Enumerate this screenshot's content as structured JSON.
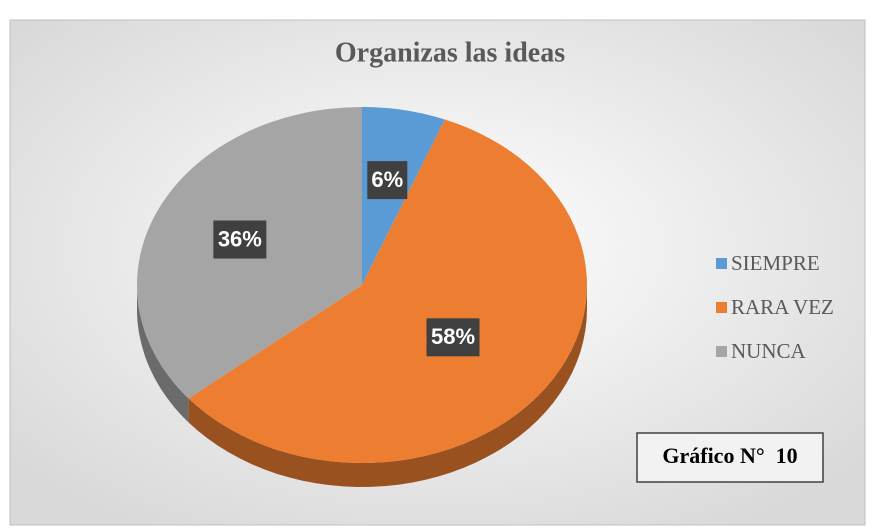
{
  "chart_data": {
    "type": "pie",
    "title": "Organizas las ideas",
    "categories": [
      "SIEMPRE",
      "RARA VEZ",
      "NUNCA"
    ],
    "values": [
      6,
      58,
      36
    ],
    "value_labels": [
      "6%",
      "58%",
      "36%"
    ],
    "colors": [
      "#5b9bd5",
      "#ed7d31",
      "#a5a5a5"
    ],
    "legend": "right",
    "annotation": "Gráfico N°  10"
  }
}
